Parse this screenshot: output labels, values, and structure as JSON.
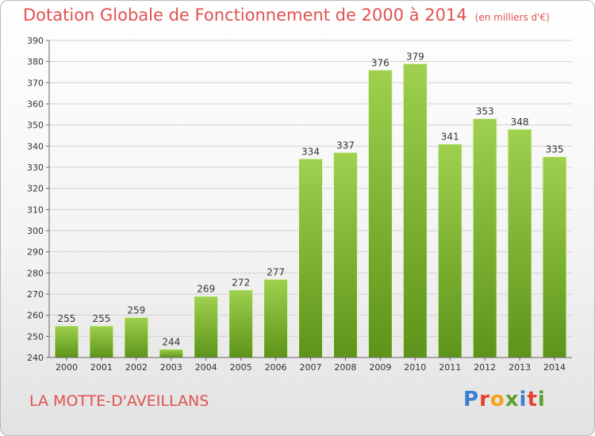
{
  "header": {
    "title": "Dotation Globale de Fonctionnement de 2000 à 2014",
    "unit": "(en milliers d'€)"
  },
  "footer": {
    "commune": "LA MOTTE-D'AVEILLANS",
    "logo": "Proxiti"
  },
  "colors": {
    "title": "#e0524f",
    "bar_top": "#9fd04f",
    "bar_bottom": "#5d9419",
    "bar_edge": "#e8f6cf"
  },
  "chart_data": {
    "type": "bar",
    "title": "Dotation Globale de Fonctionnement de 2000 à 2014",
    "subtitle": "(en milliers d'€)",
    "categories": [
      "2000",
      "2001",
      "2002",
      "2003",
      "2004",
      "2005",
      "2006",
      "2007",
      "2008",
      "2009",
      "2010",
      "2011",
      "2012",
      "2013",
      "2014"
    ],
    "values": [
      255,
      255,
      259,
      244,
      269,
      272,
      277,
      334,
      337,
      376,
      379,
      341,
      353,
      348,
      335
    ],
    "ylim": [
      240,
      390
    ],
    "yticks": [
      240,
      250,
      260,
      270,
      280,
      290,
      300,
      310,
      320,
      330,
      340,
      350,
      360,
      370,
      380,
      390
    ],
    "grid": true,
    "data_labels": true
  }
}
